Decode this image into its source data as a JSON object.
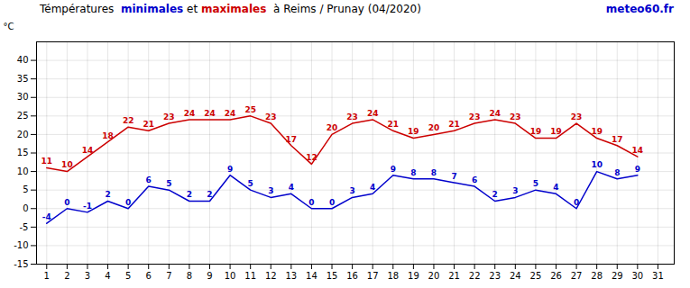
{
  "chart_data": {
    "type": "line",
    "title": "Témpératures  minimales et maximales  à Reims / Prunay (04/2020)",
    "annotations": [
      "meteo60.fr"
    ],
    "ylabel": "°C",
    "x": [
      1,
      2,
      3,
      4,
      5,
      6,
      7,
      8,
      9,
      10,
      11,
      12,
      13,
      14,
      15,
      16,
      17,
      18,
      19,
      20,
      21,
      22,
      23,
      24,
      25,
      26,
      27,
      28,
      29,
      30,
      31
    ],
    "series": [
      {
        "name": "minimales",
        "color": "#0000cc",
        "values": [
          -4,
          0,
          -1,
          2,
          0,
          6,
          5,
          2,
          2,
          9,
          5,
          3,
          4,
          0,
          0,
          3,
          4,
          9,
          8,
          8,
          7,
          6,
          2,
          3,
          5,
          4,
          0,
          10,
          8,
          9,
          null
        ]
      },
      {
        "name": "maximales",
        "color": "#cc0000",
        "values": [
          11,
          10,
          14,
          18,
          22,
          21,
          23,
          24,
          24,
          24,
          25,
          23,
          17,
          12,
          20,
          23,
          24,
          21,
          19,
          20,
          21,
          23,
          24,
          23,
          19,
          19,
          23,
          19,
          17,
          14,
          null
        ]
      }
    ],
    "xlim": [
      0.5,
      31.8
    ],
    "xticks": [
      1,
      2,
      3,
      4,
      5,
      6,
      7,
      8,
      9,
      10,
      11,
      12,
      13,
      14,
      15,
      16,
      17,
      18,
      19,
      20,
      21,
      22,
      23,
      24,
      25,
      26,
      27,
      28,
      29,
      30,
      31
    ],
    "ylim": [
      -15,
      45
    ],
    "yticks": [
      -15,
      -10,
      -5,
      0,
      5,
      10,
      15,
      20,
      25,
      30,
      35,
      40
    ],
    "grid": true,
    "data_labels": true
  }
}
